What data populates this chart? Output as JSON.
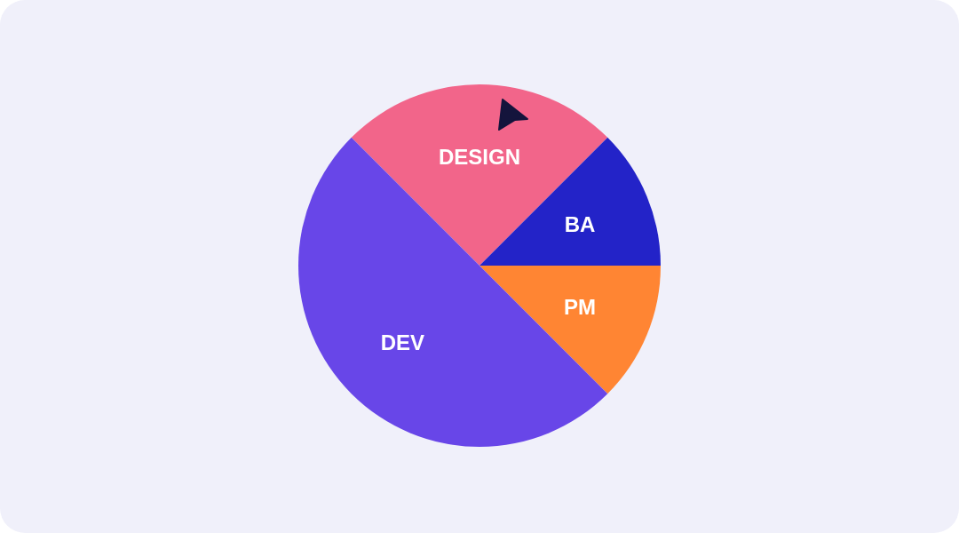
{
  "chart_data": {
    "type": "pie",
    "categories": [
      "DESIGN",
      "BA",
      "PM",
      "DEV"
    ],
    "values": [
      25,
      12.5,
      12.5,
      50
    ],
    "colors": [
      "#f2658a",
      "#2323c8",
      "#ff8533",
      "#6846e8"
    ],
    "data_labels": false,
    "legend": false
  }
}
